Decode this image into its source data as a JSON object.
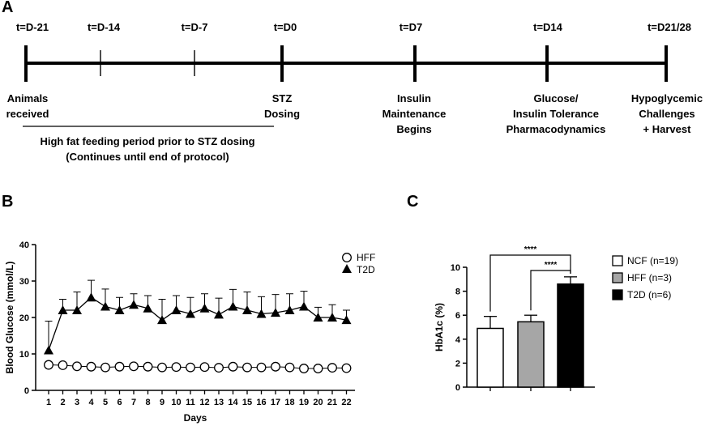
{
  "panels": {
    "a": "A",
    "b": "B",
    "c": "C"
  },
  "timeline": {
    "top_labels": [
      "t=D-21",
      "t=D-14",
      "t=D-7",
      "t=D0",
      "t=D7",
      "t=D14",
      "t=D21/28"
    ],
    "events": [
      {
        "lines": [
          "Animals",
          "received"
        ]
      },
      {
        "lines": [
          "STZ",
          "Dosing"
        ]
      },
      {
        "lines": [
          "Insulin",
          "Maintenance",
          "Begins"
        ]
      },
      {
        "lines": [
          "Glucose/",
          "Insulin Tolerance",
          "Pharmacodynamics"
        ]
      },
      {
        "lines": [
          "Hypoglycemic",
          "Challenges",
          "+ Harvest"
        ]
      }
    ],
    "hff_note": [
      "High fat feeding period prior to STZ dosing",
      "(Continues until end of protocol)"
    ]
  },
  "chart_data": [
    {
      "type": "line",
      "xlabel": "Days",
      "ylabel": "Blood Glucose (mmol/L)",
      "ylim": [
        0,
        40
      ],
      "yticks": [
        0,
        10,
        20,
        30,
        40
      ],
      "x": [
        1,
        2,
        3,
        4,
        5,
        6,
        7,
        8,
        9,
        10,
        11,
        12,
        13,
        14,
        15,
        16,
        17,
        18,
        19,
        20,
        21,
        22
      ],
      "series": [
        {
          "name": "HFF",
          "marker": "open-circle",
          "values": [
            7,
            6.9,
            6.6,
            6.5,
            6.3,
            6.5,
            6.6,
            6.5,
            6.3,
            6.4,
            6.3,
            6.4,
            6.2,
            6.5,
            6.3,
            6.3,
            6.5,
            6.3,
            6,
            6,
            6.2,
            6.1
          ]
        },
        {
          "name": "T2D",
          "marker": "filled-triangle",
          "values": [
            11,
            22,
            22,
            25.5,
            23,
            22,
            23.5,
            22.5,
            19.3,
            22,
            21,
            22.5,
            20.8,
            23,
            22,
            21,
            21.3,
            22,
            23,
            20,
            20,
            19.3
          ],
          "error": [
            8,
            3,
            5,
            4.7,
            4.8,
            3.5,
            3,
            3.5,
            5.7,
            4,
            4.5,
            4,
            4.5,
            4.7,
            5,
            4.7,
            5,
            4.5,
            4.2,
            2.8,
            3.5,
            2.7
          ]
        }
      ],
      "legend": "top-right"
    },
    {
      "type": "bar",
      "ylabel": "HbA1c (%)",
      "ylim": [
        0,
        10
      ],
      "yticks": [
        0,
        2,
        4,
        6,
        8,
        10
      ],
      "categories": [
        "NCF (n=19)",
        "HFF (n=3)",
        "T2D (n=6)"
      ],
      "values": [
        4.9,
        5.45,
        8.6
      ],
      "error": [
        1.0,
        0.55,
        0.6
      ],
      "colors": [
        "#ffffff",
        "#a6a6a6",
        "#000000"
      ],
      "significance": [
        {
          "from": 0,
          "to": 2,
          "label": "****"
        },
        {
          "from": 1,
          "to": 2,
          "label": "****"
        }
      ],
      "legend": "right"
    }
  ]
}
